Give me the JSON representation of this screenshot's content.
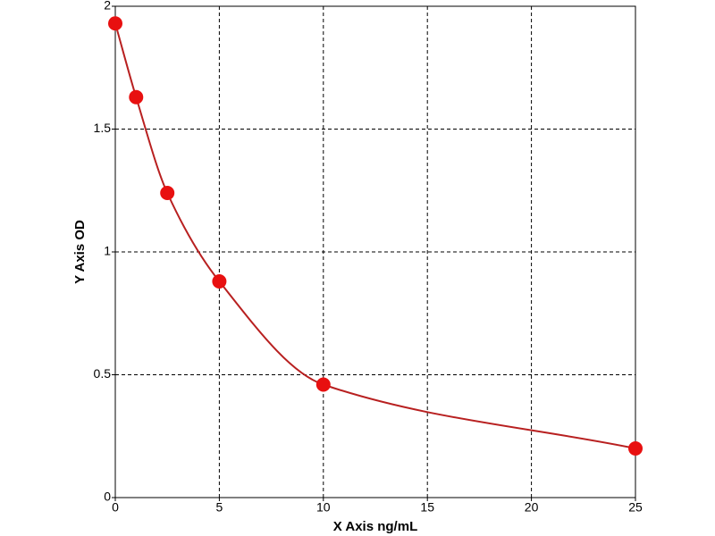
{
  "chart_data": {
    "type": "scatter",
    "x": [
      0,
      1,
      2.5,
      5,
      10,
      25
    ],
    "values": [
      1.93,
      1.63,
      1.24,
      0.88,
      0.46,
      0.2
    ],
    "color": "#e81010",
    "line_color": "#b82020",
    "xlabel": "X Axis ng/mL",
    "ylabel": "Y Axis OD",
    "xlim": [
      0,
      25
    ],
    "ylim": [
      0,
      2
    ],
    "xticks": [
      0,
      5,
      10,
      15,
      20,
      25
    ],
    "yticks": [
      0,
      0.5,
      1,
      1.5,
      2
    ],
    "grid": true
  }
}
